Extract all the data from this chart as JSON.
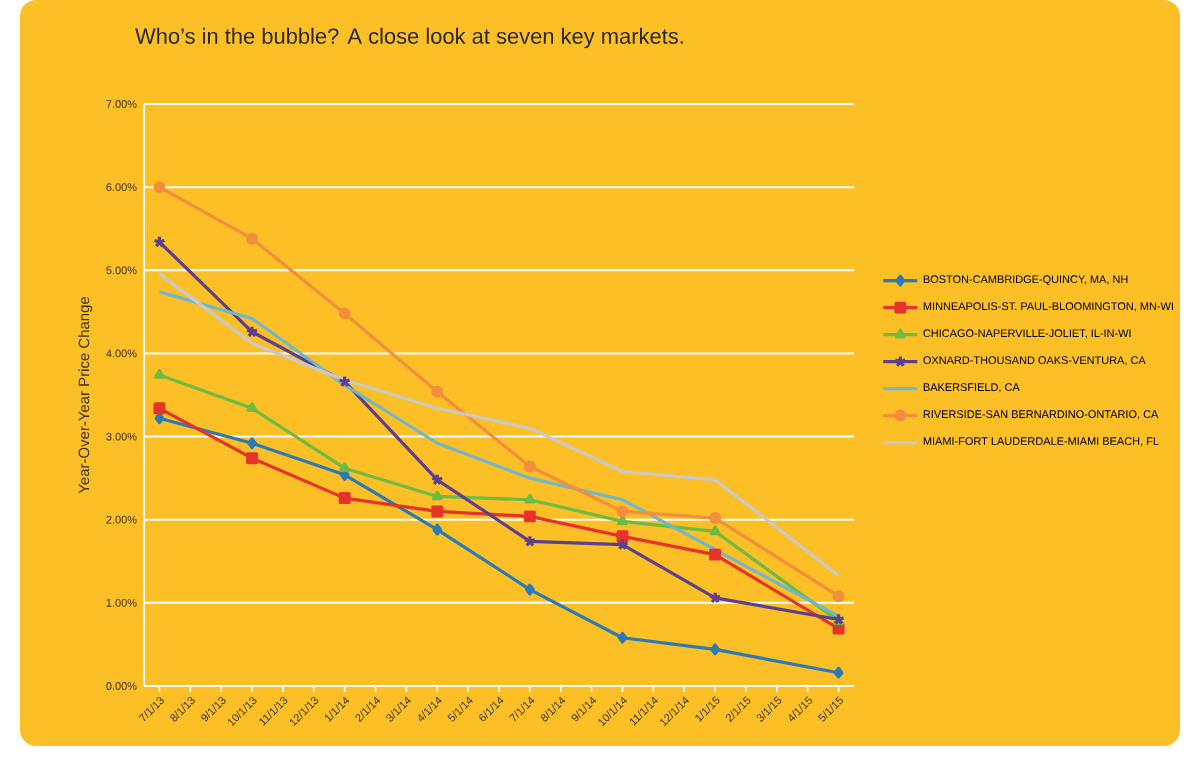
{
  "chart_data": {
    "type": "line",
    "title": "Who’s in the bubble? A close look at seven key markets.",
    "ylabel": "Year-Over-Year Price Change",
    "categories": [
      "7/1/13",
      "8/1/13",
      "9/1/13",
      "10/1/13",
      "11/1/13",
      "12/1/13",
      "1/1/14",
      "2/1/14",
      "3/1/14",
      "4/1/14",
      "5/1/14",
      "6/1/14",
      "7/1/14",
      "8/1/14",
      "9/1/14",
      "10/1/14",
      "11/1/14",
      "12/1/14",
      "1/1/15",
      "2/1/15",
      "3/1/15",
      "4/1/15",
      "5/1/15"
    ],
    "ylim": [
      0,
      7
    ],
    "yticks": [
      {
        "value": 0,
        "label": "0.00%"
      },
      {
        "value": 1,
        "label": "1.00%"
      },
      {
        "value": 2,
        "label": "2.00%"
      },
      {
        "value": 3,
        "label": "3.00%"
      },
      {
        "value": 4,
        "label": "4.00%"
      },
      {
        "value": 5,
        "label": "5.00%"
      },
      {
        "value": 6,
        "label": "6.00%"
      },
      {
        "value": 7,
        "label": "7.00%"
      }
    ],
    "grid": "y",
    "legend": "right",
    "line_style": "solid",
    "series": [
      {
        "name": "BOSTON-CAMBRIDGE-QUINCY, MA, NH",
        "color": "#2a7ab5",
        "marker": "diamond",
        "values": [
          3.22,
          null,
          null,
          2.92,
          null,
          null,
          2.54,
          null,
          null,
          1.88,
          null,
          null,
          1.16,
          null,
          null,
          0.58,
          null,
          null,
          0.44,
          null,
          null,
          null,
          0.16
        ]
      },
      {
        "name": "MINNEAPOLIS-ST. PAUL-BLOOMINGTON, MN-WI",
        "color": "#e6332a",
        "marker": "square",
        "values": [
          3.34,
          null,
          null,
          2.74,
          null,
          null,
          2.26,
          null,
          null,
          2.1,
          null,
          null,
          2.04,
          null,
          null,
          1.8,
          null,
          null,
          1.58,
          null,
          null,
          null,
          0.69
        ]
      },
      {
        "name": "CHICAGO-NAPERVILLE-JOLIET, IL-IN-WI",
        "color": "#6cbb44",
        "marker": "triangle",
        "values": [
          3.74,
          null,
          null,
          3.34,
          null,
          null,
          2.62,
          null,
          null,
          2.28,
          null,
          null,
          2.24,
          null,
          null,
          1.98,
          null,
          null,
          1.86,
          null,
          null,
          null,
          0.78
        ]
      },
      {
        "name": "OXNARD-THOUSAND OAKS-VENTURA, CA",
        "color": "#5c3f8e",
        "marker": "cross",
        "values": [
          5.34,
          null,
          null,
          4.26,
          null,
          null,
          3.66,
          null,
          null,
          2.48,
          null,
          null,
          1.74,
          null,
          null,
          1.7,
          null,
          null,
          1.06,
          null,
          null,
          null,
          0.8
        ]
      },
      {
        "name": "BAKERSFIELD, CA",
        "color": "#6db7cf",
        "marker": "none",
        "values": [
          4.74,
          null,
          null,
          4.42,
          null,
          null,
          3.62,
          null,
          null,
          2.92,
          null,
          null,
          2.5,
          null,
          null,
          2.24,
          null,
          null,
          1.64,
          null,
          null,
          null,
          0.84
        ]
      },
      {
        "name": "RIVERSIDE-SAN BERNARDINO-ONTARIO, CA",
        "color": "#f28e3c",
        "marker": "circle",
        "values": [
          6.0,
          null,
          null,
          5.38,
          null,
          null,
          4.48,
          null,
          null,
          3.54,
          null,
          null,
          2.64,
          null,
          null,
          2.1,
          null,
          null,
          2.02,
          null,
          null,
          null,
          1.08
        ]
      },
      {
        "name": "MIAMI-FORT LAUDERDALE-MIAMI BEACH, FL",
        "color": "#c9c9c9",
        "marker": "none",
        "values": [
          4.96,
          null,
          null,
          4.12,
          null,
          null,
          3.68,
          null,
          null,
          3.34,
          null,
          null,
          3.1,
          null,
          null,
          2.58,
          null,
          null,
          2.48,
          null,
          null,
          null,
          1.33
        ]
      }
    ]
  }
}
